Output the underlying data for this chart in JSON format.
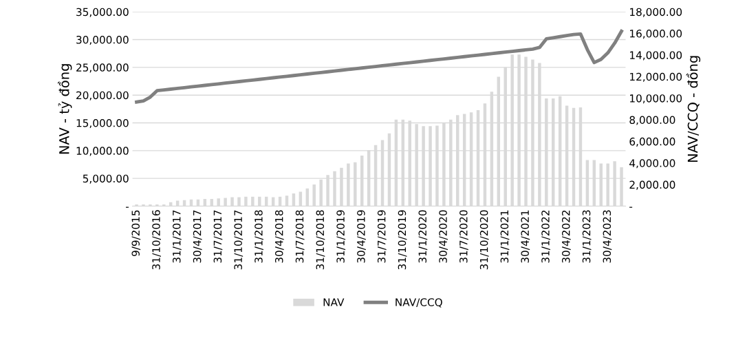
{
  "chart_data": {
    "type": "bar",
    "ylabel": "NAV - tỷ đồng",
    "y2label": "NAV/CCQ - đồng",
    "categories": [
      "9/9/2015",
      null,
      null,
      "31/10/2016",
      null,
      null,
      "31/1/2017",
      null,
      null,
      "30/4/2017",
      null,
      null,
      "31/7/2017",
      null,
      null,
      "31/10/2017",
      null,
      null,
      "31/1/2018",
      null,
      null,
      "30/4/2018",
      null,
      null,
      "31/7/2018",
      null,
      null,
      "31/10/2018",
      null,
      null,
      "31/1/2019",
      null,
      null,
      "30/4/2019",
      null,
      null,
      "31/7/2019",
      null,
      null,
      "31/10/2019",
      null,
      null,
      "31/1/2020",
      null,
      null,
      "30/4/2020",
      null,
      null,
      "31/7/2020",
      null,
      null,
      "31/10/2020",
      null,
      null,
      "31/1/2021",
      null,
      null,
      "30/4/2021",
      null,
      null,
      "31/1/2022",
      null,
      null,
      "30/4/2022",
      null,
      null,
      "31/1/2023",
      null,
      null,
      "30/4/2023",
      null,
      null
    ],
    "series": [
      {
        "name": "NAV",
        "color": "#d9d9d9",
        "values": [
          300,
          300,
          300,
          300,
          300,
          700,
          1000,
          1100,
          1200,
          1200,
          1300,
          1300,
          1400,
          1500,
          1600,
          1600,
          1700,
          1700,
          1700,
          1700,
          1600,
          1700,
          1900,
          2300,
          2600,
          3200,
          3900,
          4800,
          5600,
          6300,
          6900,
          7700,
          7900,
          9100,
          10100,
          11000,
          11900,
          13100,
          15600,
          15600,
          15400,
          14800,
          14400,
          14400,
          14500,
          15000,
          15600,
          16400,
          16600,
          16900,
          17300,
          18500,
          20600,
          23300,
          25000,
          27300,
          27300,
          26900,
          26400,
          25800,
          19400,
          19400,
          19800,
          18100,
          17700,
          17800,
          8300,
          8300,
          7700,
          7700,
          8100,
          7000
        ]
      },
      {
        "name": "NAV/CCQ",
        "type": "line",
        "axis": "y2",
        "color": "#808080",
        "values": [
          9650,
          9750,
          10100,
          10700,
          10770,
          10840,
          10910,
          10980,
          11050,
          11120,
          11190,
          11260,
          11330,
          11400,
          11470,
          11540,
          11610,
          11680,
          11750,
          11820,
          11890,
          11960,
          12030,
          12100,
          12170,
          12240,
          12310,
          12380,
          12450,
          12520,
          12590,
          12660,
          12730,
          12800,
          12870,
          12940,
          13010,
          13080,
          13150,
          13220,
          13290,
          13360,
          13430,
          13500,
          13570,
          13640,
          13710,
          13780,
          13850,
          13920,
          13990,
          14060,
          14130,
          14200,
          14270,
          14340,
          14410,
          14480,
          14550,
          14700,
          15500,
          15600,
          15700,
          15800,
          15900,
          15950,
          14500,
          13300,
          13600,
          14200,
          15100,
          16200
        ]
      }
    ],
    "ylim": [
      0,
      35000
    ],
    "yticks": [
      {
        "value": 0,
        "label": "-"
      },
      {
        "value": 5000,
        "label": "5,000.00"
      },
      {
        "value": 10000,
        "label": "10,000.00"
      },
      {
        "value": 15000,
        "label": "15,000.00"
      },
      {
        "value": 20000,
        "label": "20,000.00"
      },
      {
        "value": 25000,
        "label": "25,000.00"
      },
      {
        "value": 30000,
        "label": "30,000.00"
      },
      {
        "value": 35000,
        "label": "35,000.00"
      }
    ],
    "y2lim": [
      0,
      18000
    ],
    "y2ticks": [
      {
        "value": 0,
        "label": "-"
      },
      {
        "value": 2000,
        "label": "2,000.00"
      },
      {
        "value": 4000,
        "label": "4,000.00"
      },
      {
        "value": 6000,
        "label": "6,000.00"
      },
      {
        "value": 8000,
        "label": "8,000.00"
      },
      {
        "value": 10000,
        "label": "10,000.00"
      },
      {
        "value": 12000,
        "label": "12,000.00"
      },
      {
        "value": 14000,
        "label": "14,000.00"
      },
      {
        "value": 16000,
        "label": "16,000.00"
      },
      {
        "value": 18000,
        "label": "18,000.00"
      }
    ],
    "grid": "y",
    "legend": "bottom"
  }
}
